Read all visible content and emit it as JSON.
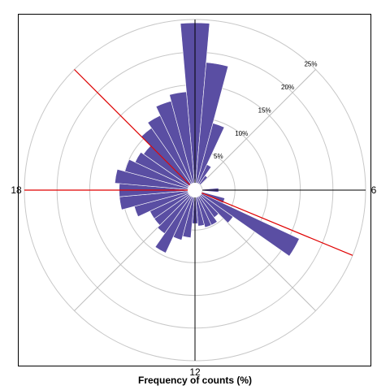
{
  "chart_data": {
    "type": "polar-bar",
    "xlabel": "Frequency of counts (%)",
    "radial_unit": "%",
    "rings": [
      5,
      10,
      15,
      20,
      25
    ],
    "ring_labels": [
      "5%",
      "10%",
      "15%",
      "20%",
      "25%"
    ],
    "rmax": 25,
    "angular_axis": {
      "period": 24,
      "direction": "clockwise",
      "zero_at": "top",
      "tick_labels": [
        {
          "hour": 6,
          "label": "6"
        },
        {
          "hour": 12,
          "label": "12"
        },
        {
          "hour": 18,
          "label": "18"
        }
      ]
    },
    "highlight_lines_hours": [
      7.5,
      18,
      21
    ],
    "bar_width_deg": 10,
    "bar_color": "#5a4ea3",
    "accent_line_color": "#e00000",
    "bars": [
      {
        "angle_deg": 0,
        "value": 24.5
      },
      {
        "angle_deg": 10,
        "value": 18.5
      },
      {
        "angle_deg": 20,
        "value": 9.5
      },
      {
        "angle_deg": 30,
        "value": 3.2
      },
      {
        "angle_deg": 40,
        "value": 1.6
      },
      {
        "angle_deg": 90,
        "value": 2.5
      },
      {
        "angle_deg": 110,
        "value": 3.6
      },
      {
        "angle_deg": 120,
        "value": 16.5
      },
      {
        "angle_deg": 130,
        "value": 6.0
      },
      {
        "angle_deg": 140,
        "value": 4.0
      },
      {
        "angle_deg": 150,
        "value": 4.8
      },
      {
        "angle_deg": 160,
        "value": 4.8
      },
      {
        "angle_deg": 170,
        "value": 4.4
      },
      {
        "angle_deg": 180,
        "value": 4.0
      },
      {
        "angle_deg": 190,
        "value": 6.2
      },
      {
        "angle_deg": 200,
        "value": 6.8
      },
      {
        "angle_deg": 210,
        "value": 9.5
      },
      {
        "angle_deg": 220,
        "value": 7.0
      },
      {
        "angle_deg": 230,
        "value": 6.5
      },
      {
        "angle_deg": 240,
        "value": 6.5
      },
      {
        "angle_deg": 250,
        "value": 8.5
      },
      {
        "angle_deg": 260,
        "value": 10.5
      },
      {
        "angle_deg": 270,
        "value": 10.5
      },
      {
        "angle_deg": 280,
        "value": 11.2
      },
      {
        "angle_deg": 290,
        "value": 10.0
      },
      {
        "angle_deg": 300,
        "value": 9.0
      },
      {
        "angle_deg": 310,
        "value": 8.5
      },
      {
        "angle_deg": 320,
        "value": 10.5
      },
      {
        "angle_deg": 330,
        "value": 11.5
      },
      {
        "angle_deg": 340,
        "value": 13.0
      },
      {
        "angle_deg": 350,
        "value": 14.0
      }
    ]
  }
}
